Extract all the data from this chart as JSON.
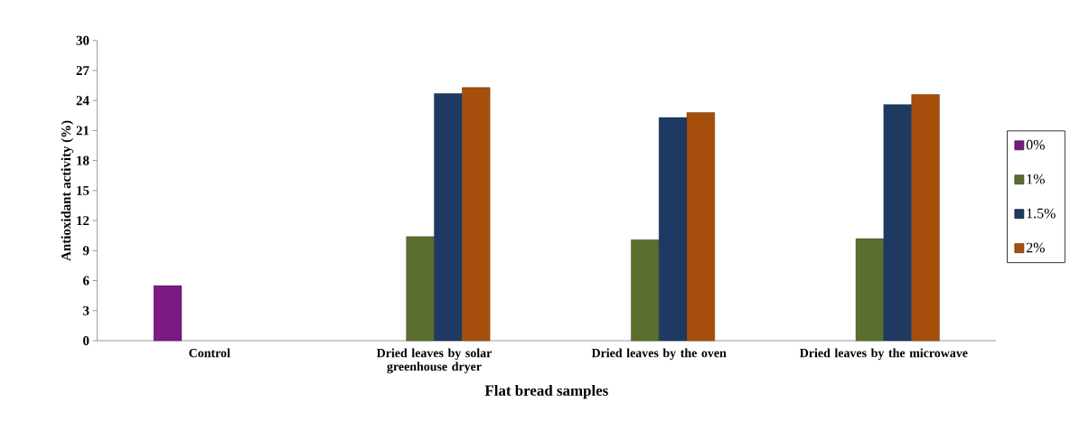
{
  "chart_data": {
    "type": "bar",
    "xlabel": "Flat bread samples",
    "ylabel": "Antioxidant activity (%)",
    "categories": [
      "Control",
      "Dried leaves by solar greenhouse dryer",
      "Dried  leaves by the oven",
      "Dried  leaves by the microwave"
    ],
    "series": [
      {
        "name": "0%",
        "color": "#7a1a82",
        "values": [
          5.5,
          null,
          null,
          null
        ]
      },
      {
        "name": "1%",
        "color": "#5a6e2e",
        "values": [
          null,
          10.4,
          10.1,
          10.2
        ]
      },
      {
        "name": "1.5%",
        "color": "#1e3a63",
        "values": [
          null,
          24.7,
          22.3,
          23.6
        ]
      },
      {
        "name": "2%",
        "color": "#a64f0c",
        "values": [
          null,
          25.3,
          22.8,
          24.6
        ]
      }
    ],
    "ylim": [
      0,
      30
    ],
    "yticks": [
      0,
      3,
      6,
      9,
      12,
      15,
      18,
      21,
      24,
      27,
      30
    ],
    "grid": false,
    "legend": "right"
  }
}
